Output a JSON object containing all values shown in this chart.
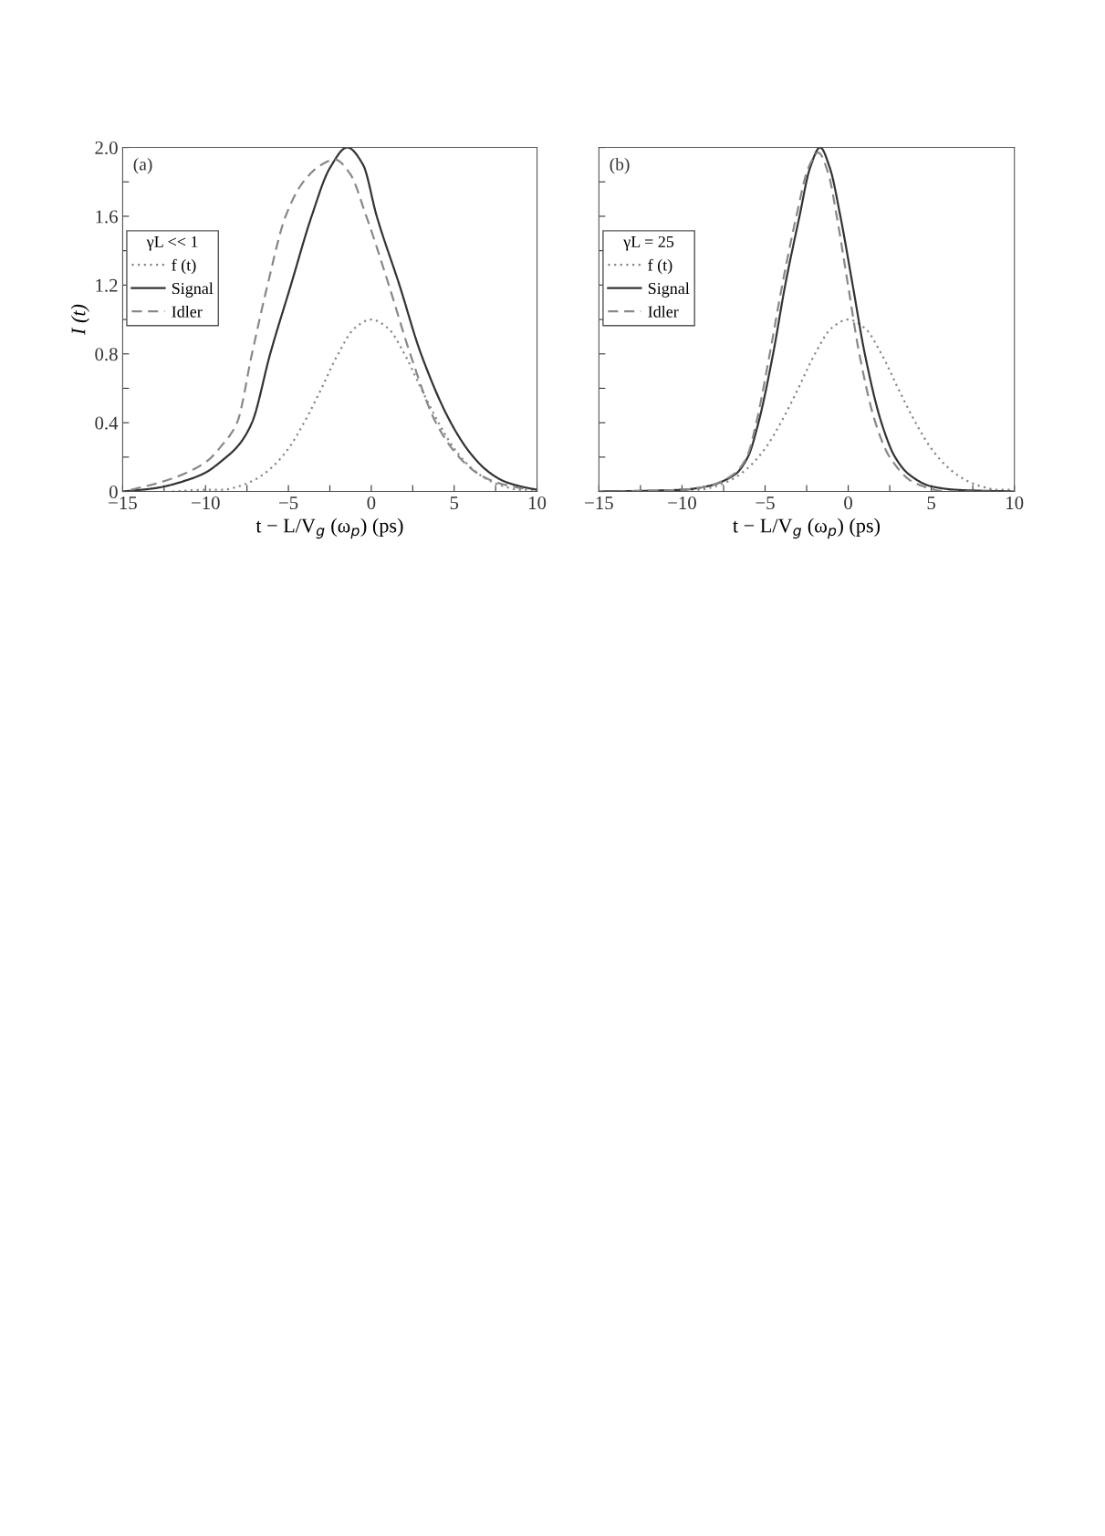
{
  "chart_data": [
    {
      "type": "line",
      "xlabel": "t − L/V$_{g}$ (ω$_{p}$) (ps)",
      "ylabel": "I (t)",
      "legend_title": "γL << 1",
      "legend": "center left",
      "grid": false,
      "annotations": [
        "(a)"
      ],
      "xlim": [
        -15,
        10
      ],
      "xticks": [
        {
          "value": -15,
          "label": "−15"
        },
        {
          "value": -12.5,
          "label": null
        },
        {
          "value": -10,
          "label": "−10"
        },
        {
          "value": -7.5,
          "label": null
        },
        {
          "value": -5,
          "label": "−5"
        },
        {
          "value": -2.5,
          "label": null
        },
        0,
        {
          "value": 2.5,
          "label": null
        },
        5,
        {
          "value": 7.5,
          "label": null
        },
        10
      ],
      "ylim": [
        0,
        2.0
      ],
      "yticks": [
        0,
        {
          "value": 0.2,
          "label": null
        },
        0.4,
        {
          "value": 0.6,
          "label": null
        },
        0.8,
        {
          "value": 1.0,
          "label": null
        },
        1.2,
        {
          "value": 1.4,
          "label": null
        },
        1.6,
        {
          "value": 1.8,
          "label": null
        },
        {
          "value": 2.0,
          "label": "2.0"
        }
      ],
      "series": [
        {
          "name": "f (t)",
          "color": "#888888",
          "line_style": "dotted",
          "x": [
            -12,
            -10,
            -9,
            -8,
            -7,
            -6,
            -5,
            -4,
            -3,
            -2,
            -1,
            0,
            1,
            2,
            3,
            4,
            5,
            6,
            7,
            8,
            9,
            10
          ],
          "values": [
            0.0,
            0.01,
            0.01,
            0.03,
            0.07,
            0.14,
            0.25,
            0.41,
            0.6,
            0.8,
            0.95,
            1.0,
            0.95,
            0.8,
            0.6,
            0.41,
            0.25,
            0.14,
            0.07,
            0.03,
            0.01,
            0.01
          ]
        },
        {
          "name": "Signal",
          "color": "#333333",
          "line_style": "solid",
          "x": [
            -15,
            -13,
            -11,
            -10,
            -9,
            -8,
            -7.2,
            -6.1,
            -4.85,
            -3.6,
            -2.5,
            -1.45,
            -0.5,
            0.33,
            1.7,
            3.0,
            4.8,
            6,
            7,
            8,
            9,
            10
          ],
          "values": [
            0.0,
            0.02,
            0.07,
            0.11,
            0.18,
            0.27,
            0.4,
            0.8,
            1.2,
            1.6,
            1.88,
            2.0,
            1.9,
            1.6,
            1.2,
            0.8,
            0.4,
            0.22,
            0.12,
            0.06,
            0.03,
            0.01
          ]
        },
        {
          "name": "Idler",
          "color": "#888888",
          "line_style": "dashed",
          "x": [
            -14.5,
            -12.5,
            -10,
            -9,
            -8.1,
            -7.2,
            -6.26,
            -5.17,
            -4.1,
            -3,
            -2.2,
            -1.3,
            -0.3,
            1.06,
            2.35,
            3.9,
            5.3,
            6.5,
            7.65,
            9,
            9.5
          ],
          "values": [
            0.01,
            0.06,
            0.17,
            0.27,
            0.4,
            0.8,
            1.2,
            1.6,
            1.8,
            1.9,
            1.93,
            1.85,
            1.6,
            1.2,
            0.8,
            0.4,
            0.2,
            0.1,
            0.05,
            0.02,
            0.01
          ]
        }
      ]
    },
    {
      "type": "line",
      "xlabel": "t − L/V$_{g}$ (ω$_{p}$) (ps)",
      "legend_title": "γL = 25",
      "legend": "center left",
      "grid": false,
      "annotations": [
        "(b)"
      ],
      "tick_labels": "x",
      "xlim": [
        -15,
        10
      ],
      "xticks": [
        {
          "value": -15,
          "label": "−15"
        },
        {
          "value": -12.5,
          "label": null
        },
        {
          "value": -10,
          "label": "−10"
        },
        {
          "value": -7.5,
          "label": null
        },
        {
          "value": -5,
          "label": "−5"
        },
        {
          "value": -2.5,
          "label": null
        },
        0,
        {
          "value": 2.5,
          "label": null
        },
        5,
        {
          "value": 7.5,
          "label": null
        },
        10
      ],
      "ylim": [
        0,
        2.0
      ],
      "yticks": [
        0,
        0.2,
        0.4,
        0.6,
        0.8,
        1.0,
        1.2,
        1.4,
        1.6,
        1.8,
        2.0
      ],
      "series": [
        {
          "name": "f (t)",
          "color": "#888888",
          "line_style": "dotted",
          "x": [
            -12,
            -10,
            -9,
            -8,
            -7,
            -6,
            -5,
            -4,
            -3,
            -2,
            -1,
            0,
            1,
            2,
            3,
            4,
            5,
            6,
            7,
            8,
            9,
            10
          ],
          "values": [
            0.0,
            0.01,
            0.01,
            0.03,
            0.07,
            0.14,
            0.25,
            0.41,
            0.6,
            0.8,
            0.95,
            1.0,
            0.95,
            0.8,
            0.6,
            0.41,
            0.25,
            0.14,
            0.07,
            0.03,
            0.01,
            0.01
          ]
        },
        {
          "name": "Signal",
          "color": "#333333",
          "line_style": "solid",
          "x": [
            -15,
            -10,
            -8.5,
            -6.8,
            -6.04,
            -5.4,
            -4.52,
            -3.79,
            -2.93,
            -2.3,
            -1.69,
            -1.1,
            -0.47,
            0.27,
            1.0,
            2.0,
            2.82,
            3.65,
            5.0,
            6.5,
            10
          ],
          "values": [
            0.0,
            0.01,
            0.03,
            0.1,
            0.2,
            0.4,
            0.8,
            1.2,
            1.6,
            1.88,
            2.0,
            1.88,
            1.6,
            1.2,
            0.8,
            0.4,
            0.2,
            0.1,
            0.03,
            0.01,
            0.0
          ]
        },
        {
          "name": "Idler",
          "color": "#888888",
          "line_style": "dashed",
          "x": [
            -14,
            -10,
            -8.5,
            -6.9,
            -6.1,
            -5.53,
            -4.72,
            -3.97,
            -3.12,
            -2.4,
            -1.8,
            -1.2,
            -0.69,
            -0.01,
            0.67,
            1.64,
            2.5,
            4.0,
            6.0,
            9
          ],
          "values": [
            0.0,
            0.01,
            0.03,
            0.1,
            0.2,
            0.4,
            0.8,
            1.2,
            1.6,
            1.88,
            1.97,
            1.85,
            1.6,
            1.2,
            0.8,
            0.4,
            0.2,
            0.05,
            0.0,
            0.0
          ]
        }
      ]
    }
  ]
}
